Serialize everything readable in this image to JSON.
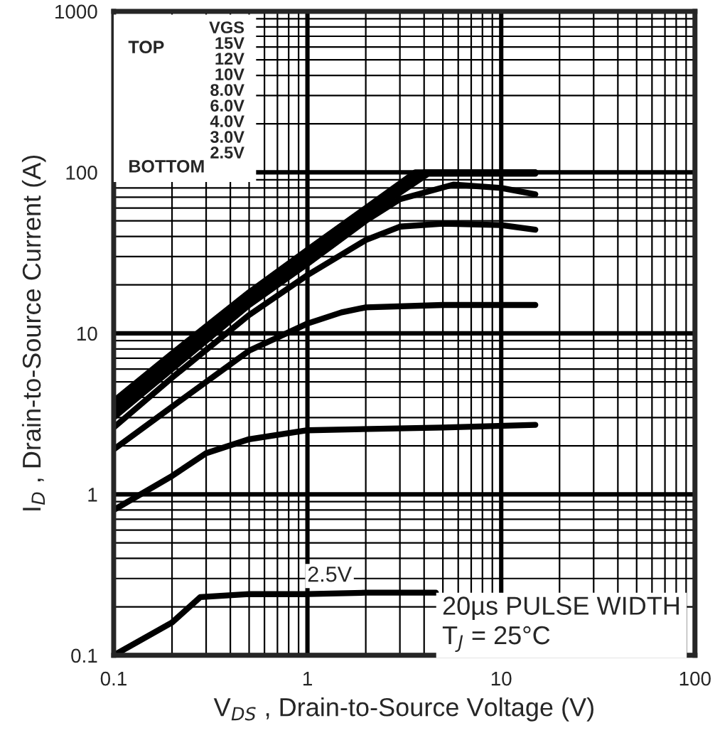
{
  "chart_data": {
    "type": "line",
    "xlabel": "V$_{DS}$ , Drain-to-Source Voltage (V)",
    "ylabel": "I$_{D}$ , Drain-to-Source Current (A)",
    "log": "xy",
    "xlim": [
      0.1,
      100
    ],
    "xticks": [
      0.1,
      1,
      10,
      100
    ],
    "ylim": [
      0.1,
      1000
    ],
    "yticks": [
      0.1,
      1,
      10,
      100,
      1000
    ],
    "grid": true,
    "line_style": "solid",
    "marker": "none",
    "series": [
      {
        "color": "#000000",
        "x": [
          0.1,
          0.2,
          0.5,
          1,
          2,
          3.6,
          15
        ],
        "values": [
          3.8,
          7.5,
          18,
          33,
          60,
          100,
          100
        ]
      },
      {
        "color": "#000000",
        "x": [
          0.1,
          0.2,
          0.5,
          1,
          2,
          4,
          15
        ],
        "values": [
          3.5,
          7,
          17,
          31,
          57,
          100,
          100
        ]
      },
      {
        "color": "#000000",
        "x": [
          0.1,
          0.2,
          0.5,
          1,
          2,
          4.2,
          15
        ],
        "values": [
          3.2,
          6.5,
          16,
          29,
          54,
          98,
          98
        ]
      },
      {
        "color": "#000000",
        "x": [
          0.1,
          0.2,
          0.5,
          1,
          2,
          3,
          5.7,
          10,
          15
        ],
        "values": [
          3.0,
          6,
          15,
          27,
          50,
          68,
          84,
          80,
          73
        ]
      },
      {
        "color": "#000000",
        "x": [
          0.1,
          0.2,
          0.5,
          1,
          2,
          3,
          5,
          10,
          15
        ],
        "values": [
          2.6,
          5.3,
          13,
          23,
          38,
          46,
          48,
          47,
          44
        ]
      },
      {
        "color": "#000000",
        "x": [
          0.1,
          0.2,
          0.5,
          1,
          1.5,
          2,
          5,
          15
        ],
        "values": [
          1.9,
          3.5,
          7.8,
          11.5,
          13.5,
          14.5,
          15,
          15
        ]
      },
      {
        "color": "#000000",
        "x": [
          0.1,
          0.2,
          0.3,
          0.5,
          1,
          5,
          15
        ],
        "values": [
          0.8,
          1.3,
          1.8,
          2.2,
          2.5,
          2.6,
          2.7
        ]
      },
      {
        "color": "#000000",
        "x": [
          0.1,
          0.2,
          0.28,
          0.5,
          1,
          2,
          4.6
        ],
        "values": [
          0.1,
          0.16,
          0.23,
          0.24,
          0.24,
          0.245,
          0.245
        ]
      }
    ],
    "annotations": [
      "TOP",
      "BOTTOM",
      "VGS\n15V\n12V\n10V\n8.0V\n6.0V\n4.0V\n3.0V\n2.5V",
      {
        "text": "2.5V",
        "x": 1.3,
        "y": 0.24
      },
      "20µs PULSE WIDTH\nT$_{J}$ = 25°C"
    ]
  }
}
